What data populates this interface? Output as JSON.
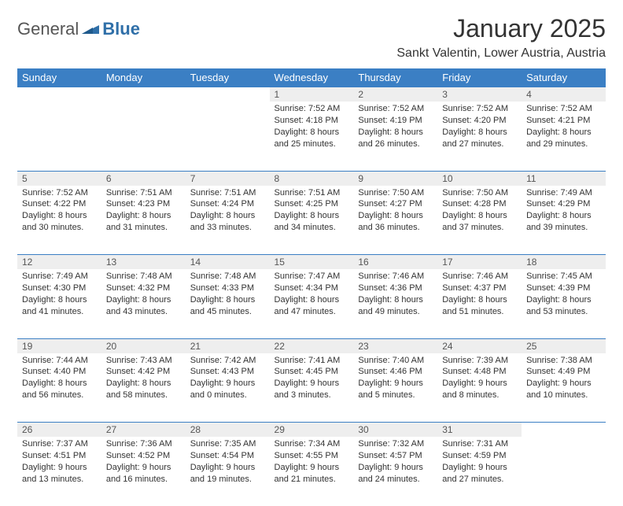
{
  "logo": {
    "text1": "General",
    "text2": "Blue",
    "color_gray": "#555555",
    "color_blue": "#2f6fa8"
  },
  "title": "January 2025",
  "location": "Sankt Valentin, Lower Austria, Austria",
  "header_bg": "#3b7fc4",
  "header_fg": "#ffffff",
  "daynum_bg": "#eeeeee",
  "border_color": "#3b7fc4",
  "days": [
    "Sunday",
    "Monday",
    "Tuesday",
    "Wednesday",
    "Thursday",
    "Friday",
    "Saturday"
  ],
  "weeks": [
    [
      null,
      null,
      null,
      {
        "n": "1",
        "sr": "7:52 AM",
        "ss": "4:18 PM",
        "d1": "8 hours",
        "d2": "and 25 minutes."
      },
      {
        "n": "2",
        "sr": "7:52 AM",
        "ss": "4:19 PM",
        "d1": "8 hours",
        "d2": "and 26 minutes."
      },
      {
        "n": "3",
        "sr": "7:52 AM",
        "ss": "4:20 PM",
        "d1": "8 hours",
        "d2": "and 27 minutes."
      },
      {
        "n": "4",
        "sr": "7:52 AM",
        "ss": "4:21 PM",
        "d1": "8 hours",
        "d2": "and 29 minutes."
      }
    ],
    [
      {
        "n": "5",
        "sr": "7:52 AM",
        "ss": "4:22 PM",
        "d1": "8 hours",
        "d2": "and 30 minutes."
      },
      {
        "n": "6",
        "sr": "7:51 AM",
        "ss": "4:23 PM",
        "d1": "8 hours",
        "d2": "and 31 minutes."
      },
      {
        "n": "7",
        "sr": "7:51 AM",
        "ss": "4:24 PM",
        "d1": "8 hours",
        "d2": "and 33 minutes."
      },
      {
        "n": "8",
        "sr": "7:51 AM",
        "ss": "4:25 PM",
        "d1": "8 hours",
        "d2": "and 34 minutes."
      },
      {
        "n": "9",
        "sr": "7:50 AM",
        "ss": "4:27 PM",
        "d1": "8 hours",
        "d2": "and 36 minutes."
      },
      {
        "n": "10",
        "sr": "7:50 AM",
        "ss": "4:28 PM",
        "d1": "8 hours",
        "d2": "and 37 minutes."
      },
      {
        "n": "11",
        "sr": "7:49 AM",
        "ss": "4:29 PM",
        "d1": "8 hours",
        "d2": "and 39 minutes."
      }
    ],
    [
      {
        "n": "12",
        "sr": "7:49 AM",
        "ss": "4:30 PM",
        "d1": "8 hours",
        "d2": "and 41 minutes."
      },
      {
        "n": "13",
        "sr": "7:48 AM",
        "ss": "4:32 PM",
        "d1": "8 hours",
        "d2": "and 43 minutes."
      },
      {
        "n": "14",
        "sr": "7:48 AM",
        "ss": "4:33 PM",
        "d1": "8 hours",
        "d2": "and 45 minutes."
      },
      {
        "n": "15",
        "sr": "7:47 AM",
        "ss": "4:34 PM",
        "d1": "8 hours",
        "d2": "and 47 minutes."
      },
      {
        "n": "16",
        "sr": "7:46 AM",
        "ss": "4:36 PM",
        "d1": "8 hours",
        "d2": "and 49 minutes."
      },
      {
        "n": "17",
        "sr": "7:46 AM",
        "ss": "4:37 PM",
        "d1": "8 hours",
        "d2": "and 51 minutes."
      },
      {
        "n": "18",
        "sr": "7:45 AM",
        "ss": "4:39 PM",
        "d1": "8 hours",
        "d2": "and 53 minutes."
      }
    ],
    [
      {
        "n": "19",
        "sr": "7:44 AM",
        "ss": "4:40 PM",
        "d1": "8 hours",
        "d2": "and 56 minutes."
      },
      {
        "n": "20",
        "sr": "7:43 AM",
        "ss": "4:42 PM",
        "d1": "8 hours",
        "d2": "and 58 minutes."
      },
      {
        "n": "21",
        "sr": "7:42 AM",
        "ss": "4:43 PM",
        "d1": "9 hours",
        "d2": "and 0 minutes."
      },
      {
        "n": "22",
        "sr": "7:41 AM",
        "ss": "4:45 PM",
        "d1": "9 hours",
        "d2": "and 3 minutes."
      },
      {
        "n": "23",
        "sr": "7:40 AM",
        "ss": "4:46 PM",
        "d1": "9 hours",
        "d2": "and 5 minutes."
      },
      {
        "n": "24",
        "sr": "7:39 AM",
        "ss": "4:48 PM",
        "d1": "9 hours",
        "d2": "and 8 minutes."
      },
      {
        "n": "25",
        "sr": "7:38 AM",
        "ss": "4:49 PM",
        "d1": "9 hours",
        "d2": "and 10 minutes."
      }
    ],
    [
      {
        "n": "26",
        "sr": "7:37 AM",
        "ss": "4:51 PM",
        "d1": "9 hours",
        "d2": "and 13 minutes."
      },
      {
        "n": "27",
        "sr": "7:36 AM",
        "ss": "4:52 PM",
        "d1": "9 hours",
        "d2": "and 16 minutes."
      },
      {
        "n": "28",
        "sr": "7:35 AM",
        "ss": "4:54 PM",
        "d1": "9 hours",
        "d2": "and 19 minutes."
      },
      {
        "n": "29",
        "sr": "7:34 AM",
        "ss": "4:55 PM",
        "d1": "9 hours",
        "d2": "and 21 minutes."
      },
      {
        "n": "30",
        "sr": "7:32 AM",
        "ss": "4:57 PM",
        "d1": "9 hours",
        "d2": "and 24 minutes."
      },
      {
        "n": "31",
        "sr": "7:31 AM",
        "ss": "4:59 PM",
        "d1": "9 hours",
        "d2": "and 27 minutes."
      },
      null
    ]
  ]
}
